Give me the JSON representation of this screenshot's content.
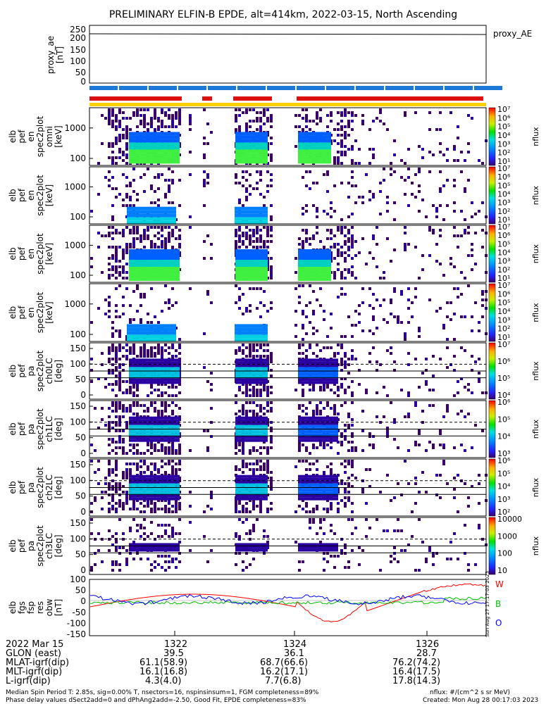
{
  "title": "PRELIMINARY ELFIN-B EPDE, alt=414km, 2022-03-15, North Ascending",
  "chart_data": [
    {
      "type": "line",
      "panel": "proxy_ae",
      "ylabel": [
        "proxy_ae",
        "[nT]"
      ],
      "legend": "proxy_AE",
      "ylim": [
        0,
        250
      ],
      "yticks": [
        "250",
        "200",
        "150",
        "100",
        "50",
        "0"
      ],
      "x": [
        1320.4,
        1327.0
      ],
      "series": [
        {
          "values": [
            215,
            215
          ]
        }
      ]
    },
    {
      "type": "heatmap",
      "panel": "elb_pef_en_spec2plot_omni",
      "ylabel": [
        "elb",
        "pef",
        "en",
        "spec2plot",
        "omni",
        "[keV]"
      ],
      "ylog": true,
      "yticks": [
        "1000",
        "100"
      ],
      "colorbar": {
        "label": "nflux",
        "ticks": [
          "10⁷",
          "10⁶",
          "10⁵",
          "10⁴",
          "10³",
          "10²",
          "10¹"
        ]
      }
    },
    {
      "type": "heatmap",
      "panel": "elb_pef_en_spec2plot_anti",
      "ylabel": [
        "elb",
        "pef",
        "en",
        "spec2plot",
        "[keV]"
      ],
      "ylog": true,
      "yticks": [
        "1000",
        "100"
      ],
      "colorbar": {
        "label": "nflux",
        "ticks": [
          "10⁷",
          "10⁶",
          "10⁵",
          "10⁴",
          "10³",
          "10²",
          "10¹"
        ]
      }
    },
    {
      "type": "heatmap",
      "panel": "elb_pef_en_spec2plot_perp",
      "ylabel": [
        "elb",
        "pef",
        "en",
        "spec2plot",
        "[keV]"
      ],
      "ylog": true,
      "yticks": [
        "1000",
        "100"
      ],
      "colorbar": {
        "label": "nflux",
        "ticks": [
          "10⁷",
          "10⁶",
          "10⁵",
          "10⁴",
          "10³",
          "10²",
          "10¹"
        ]
      }
    },
    {
      "type": "heatmap",
      "panel": "elb_pef_en_spec2plot_para",
      "ylabel": [
        "elb",
        "pef",
        "en",
        "spec2plot",
        "[keV]"
      ],
      "ylog": true,
      "yticks": [
        "1000",
        "100"
      ],
      "colorbar": {
        "label": "nflux",
        "ticks": [
          "10⁷",
          "10⁶",
          "10⁵",
          "10⁴",
          "10³",
          "10²",
          "10¹"
        ]
      }
    },
    {
      "type": "heatmap",
      "panel": "elb_pef_pa_spec2plot_ch0LC",
      "ylabel": [
        "elb",
        "pef",
        "pa",
        "spec2plot",
        "ch0LC",
        "[deg]"
      ],
      "ylim": [
        0,
        180
      ],
      "yticks": [
        "150",
        "100",
        "50",
        "0"
      ],
      "colorbar": {
        "label": "nflux",
        "ticks": [
          "10⁷",
          "10⁶",
          "10⁵",
          "10⁴"
        ]
      }
    },
    {
      "type": "heatmap",
      "panel": "elb_pef_pa_spec2plot_ch1LC",
      "ylabel": [
        "elb",
        "pef",
        "pa",
        "spec2plot",
        "ch1LC",
        "[deg]"
      ],
      "ylim": [
        0,
        180
      ],
      "yticks": [
        "150",
        "100",
        "50",
        "0"
      ],
      "colorbar": {
        "label": "nflux",
        "ticks": [
          "10⁶",
          "10⁵",
          "10⁴",
          "10³"
        ]
      }
    },
    {
      "type": "heatmap",
      "panel": "elb_pef_pa_spec2plot_ch2LC",
      "ylabel": [
        "elb",
        "pef",
        "pa",
        "spec2plot",
        "ch2LC",
        "[deg]"
      ],
      "ylim": [
        0,
        180
      ],
      "yticks": [
        "150",
        "100",
        "50",
        "0"
      ],
      "colorbar": {
        "label": "nflux",
        "ticks": [
          "10⁶",
          "10⁵",
          "10⁴",
          "10³",
          "10²"
        ]
      }
    },
    {
      "type": "heatmap",
      "panel": "elb_pef_pa_spec2plot_ch3LC",
      "ylabel": [
        "elb",
        "pef",
        "pa",
        "spec2plot",
        "ch3LC",
        "[deg]"
      ],
      "ylim": [
        0,
        180
      ],
      "yticks": [
        "150",
        "100",
        "50",
        "0"
      ],
      "colorbar": {
        "label": "nflux",
        "ticks": [
          "10000",
          "1000",
          "100",
          "10"
        ]
      }
    },
    {
      "type": "line",
      "panel": "elb_fgs_fsp_res_obw",
      "ylabel": [
        "elb",
        "fgs",
        "fsp",
        "res",
        "obw",
        "[nT]"
      ],
      "ylim": [
        -160,
        100
      ],
      "yticks": [
        "100",
        "50",
        "0",
        "-50",
        "-100",
        "-150"
      ],
      "legend": [
        "W",
        "B",
        "O"
      ],
      "series": [
        {
          "name": "W",
          "color": "#ff0000"
        },
        {
          "name": "B",
          "color": "#00c000"
        },
        {
          "name": "O",
          "color": "#0000ff"
        }
      ]
    }
  ],
  "xaxis": {
    "date": "2022 Mar 15",
    "ticks": [
      "1322",
      "1324",
      "1326"
    ],
    "rows": [
      {
        "label": "GLON (east)",
        "values": [
          "39.5",
          "36.1",
          "28.7"
        ]
      },
      {
        "label": "MLAT-igrf(dip)",
        "values": [
          "61.1(58.9)",
          "68.7(66.6)",
          "76.2(74.2)"
        ]
      },
      {
        "label": "MLT-igrf(dip)",
        "values": [
          "16.1(16.8)",
          "16.2(17.1)",
          "16.4(17.5)"
        ]
      },
      {
        "label": "L-igrf(dip)",
        "values": [
          "4.3(4.0)",
          "7.7(6.8)",
          "17.8(14.3)"
        ]
      }
    ]
  },
  "footer": {
    "line1": "Median Spin Period T: 2.85s, sig=0.00% T, nsectors=16, nspinsinsum=1, FGM completeness=89%",
    "line2": "Phase delay values dSect2add=0 and dPhAng2add=-2.50, Good Fit, EPDE completeness=83%",
    "units": "nflux: #/(cm^2 s sr MeV)",
    "created": "Created: Mon Aug 28 00:17:03 2023",
    "side_stamp": "Sun Aug 27 17:17:03 2023"
  },
  "colors": {
    "bar_blue": "#1e78d8",
    "bar_red": "#dd1111",
    "bar_yellow": "#ffd000"
  }
}
